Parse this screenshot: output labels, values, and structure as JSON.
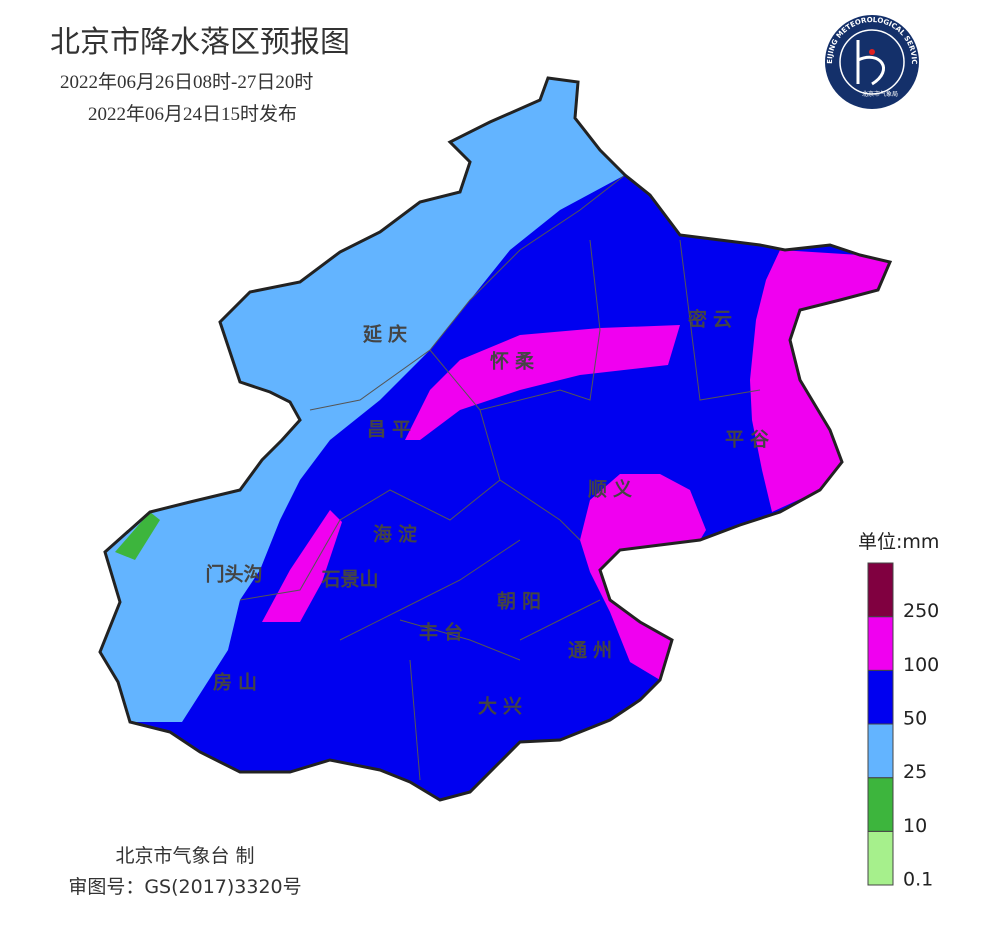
{
  "header": {
    "title": "北京市降水落区预报图",
    "period": "2022年06月26日08时-27日20时",
    "issued": "2022年06月24日15时发布"
  },
  "logo": {
    "ring_text": "BEIJING METEOROLOGICAL SERVICE",
    "org": "北京市气象局"
  },
  "districts": [
    "延庆",
    "怀柔",
    "密云",
    "昌平",
    "平谷",
    "顺义",
    "海淀",
    "门头沟",
    "石景山",
    "朝阳",
    "丰台",
    "通州",
    "房山",
    "大兴"
  ],
  "legend": {
    "title": "单位:mm",
    "levels": [
      0.1,
      10,
      25,
      50,
      100,
      250
    ],
    "colors": [
      "#a6f08c",
      "#3db53d",
      "#63b4ff",
      "#0000f0",
      "#f000f0",
      "#800040"
    ]
  },
  "footer": {
    "maker": "北京市气象台 制",
    "approval": "审图号：GS(2017)3320号"
  }
}
